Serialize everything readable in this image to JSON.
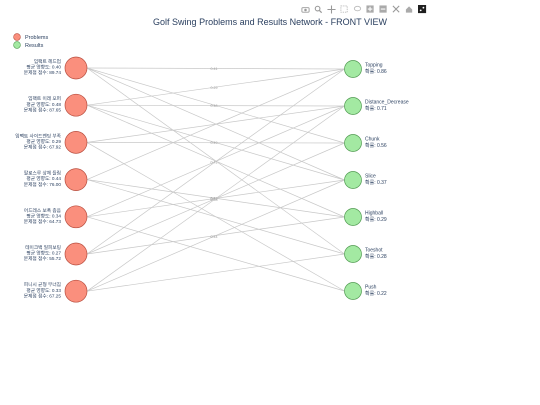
{
  "toolbar": {
    "buttons": [
      {
        "name": "camera-icon",
        "glyph": "camera"
      },
      {
        "name": "zoom-icon",
        "glyph": "zoom"
      },
      {
        "name": "pan-icon",
        "glyph": "pan"
      },
      {
        "name": "box-select-icon",
        "glyph": "box"
      },
      {
        "name": "lasso-icon",
        "glyph": "lasso"
      },
      {
        "name": "zoom-in-icon",
        "glyph": "plus"
      },
      {
        "name": "zoom-out-icon",
        "glyph": "minus"
      },
      {
        "name": "autoscale-icon",
        "glyph": "autoscale"
      },
      {
        "name": "home-icon",
        "glyph": "home"
      },
      {
        "name": "plotly-logo-icon",
        "glyph": "logo"
      }
    ]
  },
  "chart_data": {
    "type": "network",
    "title": "Golf Swing Problems and Results Network - FRONT VIEW",
    "legend": {
      "position": "top-left",
      "items": [
        "Problems",
        "Results"
      ]
    },
    "grid": false,
    "colors": {
      "problem_fill": "#fa8f7d",
      "problem_edge": "#b84e3f",
      "result_fill": "#a3e9a2",
      "result_edge": "#4f9a4f",
      "edge": "#c8c8c8",
      "title": "#2a3f5f"
    },
    "problems": [
      {
        "lines": [
          "임팩트 헤드업",
          "평균 영향도: 0.40",
          "문제점 점수: 89.74"
        ]
      },
      {
        "lines": [
          "임팩트 이래 오퍼",
          "평균 영향도: 0.48",
          "문제점 점수: 87.65"
        ]
      },
      {
        "lines": [
          "임팩트 사이드벤딩 부족",
          "평균 영향도: 0.29",
          "문제점 점수: 67.92"
        ]
      },
      {
        "lines": [
          "팔로스루 상체 들림",
          "평균 영향도: 0.44",
          "문제점 점수: 76.00"
        ]
      },
      {
        "lines": [
          "어드레스 보폭 좁음",
          "평균 영향도: 0.34",
          "문제점 점수: 64.73"
        ]
      },
      {
        "lines": [
          "테이크백 일피보팅",
          "평균 영향도: 0.27",
          "문제점 점수: 55.72"
        ]
      },
      {
        "lines": [
          "피니시 균형 무너짐",
          "평균 영향도: 0.33",
          "문제점 점수: 67.25"
        ]
      }
    ],
    "results": [
      {
        "name": "Topping",
        "prob": "확률: 0.86"
      },
      {
        "name": "Distance_Decrease",
        "prob": "확률: 0.71"
      },
      {
        "name": "Chunk",
        "prob": "확률: 0.56"
      },
      {
        "name": "Slice",
        "prob": "확률: 0.37"
      },
      {
        "name": "Highball",
        "prob": "확률: 0.29"
      },
      {
        "name": "Toeshot",
        "prob": "확률: 0.28"
      },
      {
        "name": "Push",
        "prob": "확률: 0.22"
      }
    ],
    "edges": [
      {
        "from": 0,
        "to": 0,
        "label": "0.41"
      },
      {
        "from": 0,
        "to": 2
      },
      {
        "from": 0,
        "to": 3
      },
      {
        "from": 0,
        "to": 5
      },
      {
        "from": 1,
        "to": 0,
        "label": "0.29"
      },
      {
        "from": 1,
        "to": 1,
        "label": "0.48"
      },
      {
        "from": 1,
        "to": 3
      },
      {
        "from": 1,
        "to": 4
      },
      {
        "from": 2,
        "to": 1
      },
      {
        "from": 2,
        "to": 2,
        "label": "0.49"
      },
      {
        "from": 2,
        "to": 6
      },
      {
        "from": 3,
        "to": 0
      },
      {
        "from": 3,
        "to": 4,
        "label": "0.37"
      },
      {
        "from": 3,
        "to": 5
      },
      {
        "from": 4,
        "to": 1,
        "label": "0.41"
      },
      {
        "from": 4,
        "to": 3,
        "label": "0.56"
      },
      {
        "from": 4,
        "to": 6
      },
      {
        "from": 5,
        "to": 0
      },
      {
        "from": 5,
        "to": 2,
        "label": "0.53"
      },
      {
        "from": 5,
        "to": 4
      },
      {
        "from": 6,
        "to": 1
      },
      {
        "from": 6,
        "to": 3,
        "label": "0.44"
      },
      {
        "from": 6,
        "to": 5
      }
    ]
  }
}
